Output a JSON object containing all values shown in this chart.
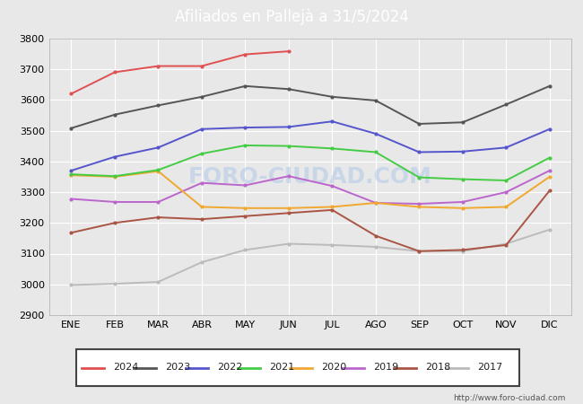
{
  "title": "Afiliados en Pallejà a 31/5/2024",
  "header_bg": "#4a90d9",
  "months": [
    "ENE",
    "FEB",
    "MAR",
    "ABR",
    "MAY",
    "JUN",
    "JUL",
    "AGO",
    "SEP",
    "OCT",
    "NOV",
    "DIC"
  ],
  "ylim": [
    2900,
    3800
  ],
  "yticks": [
    2900,
    3000,
    3100,
    3200,
    3300,
    3400,
    3500,
    3600,
    3700,
    3800
  ],
  "series": {
    "2024": {
      "color": "#e05050",
      "data": [
        3620,
        3690,
        3710,
        3710,
        3748,
        3758,
        null,
        null,
        null,
        null,
        null,
        null
      ]
    },
    "2023": {
      "color": "#555555",
      "data": [
        3508,
        3552,
        3582,
        3610,
        3645,
        3635,
        3610,
        3598,
        3522,
        3527,
        3585,
        3645
      ]
    },
    "2022": {
      "color": "#5555cc",
      "data": [
        3370,
        3415,
        3445,
        3505,
        3510,
        3512,
        3530,
        3490,
        3430,
        3432,
        3445,
        3505
      ]
    },
    "2021": {
      "color": "#44cc44",
      "data": [
        3358,
        3352,
        3372,
        3425,
        3452,
        3450,
        3442,
        3430,
        3348,
        3342,
        3338,
        3412
      ]
    },
    "2020": {
      "color": "#f0a830",
      "data": [
        3355,
        3350,
        3368,
        3252,
        3248,
        3248,
        3252,
        3265,
        3252,
        3248,
        3252,
        3350
      ]
    },
    "2019": {
      "color": "#bb66cc",
      "data": [
        3278,
        3268,
        3268,
        3330,
        3322,
        3352,
        3320,
        3265,
        3262,
        3268,
        3300,
        3370
      ]
    },
    "2018": {
      "color": "#aa5544",
      "data": [
        3168,
        3200,
        3218,
        3212,
        3222,
        3232,
        3242,
        3158,
        3108,
        3112,
        3128,
        3305
      ]
    },
    "2017": {
      "color": "#bbbbbb",
      "data": [
        2998,
        3002,
        3008,
        3072,
        3112,
        3132,
        3128,
        3122,
        3108,
        3108,
        3132,
        3178
      ]
    }
  },
  "watermark": "FORO-CIUDAD.COM",
  "footnote": "http://www.foro-ciudad.com",
  "bg_color": "#e8e8e8",
  "plot_bg": "#e8e8e8",
  "grid_color": "#ffffff",
  "legend_years": [
    "2024",
    "2023",
    "2022",
    "2021",
    "2020",
    "2019",
    "2018",
    "2017"
  ]
}
